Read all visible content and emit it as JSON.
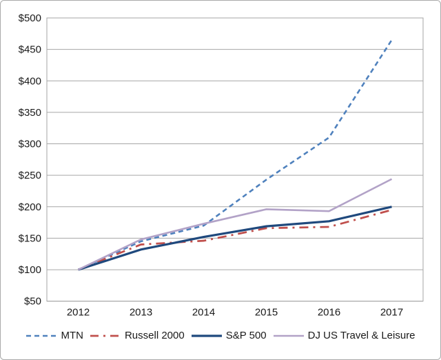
{
  "window": {
    "background": "#ffffff",
    "frame_border_color": "#a9a9a9"
  },
  "chart_data": {
    "type": "line",
    "title": "",
    "xlabel": "",
    "ylabel": "",
    "categories": [
      "2012",
      "2013",
      "2014",
      "2015",
      "2016",
      "2017"
    ],
    "series": [
      {
        "name": "MTN",
        "color": "#4f81bd",
        "dash": "7 5",
        "legend_dash": "7 5",
        "width": 2.6,
        "values": [
          100,
          145,
          170,
          243,
          310,
          465
        ]
      },
      {
        "name": "Russell 2000",
        "color": "#c0504d",
        "dash": "13 7 3 7",
        "legend_dash": "12 7 3 7",
        "width": 2.8,
        "values": [
          100,
          140,
          146,
          166,
          168,
          195
        ]
      },
      {
        "name": "S&P 500",
        "color": "#1f497d",
        "dash": "",
        "legend_dash": "",
        "width": 3.2,
        "values": [
          100,
          132,
          152,
          169,
          177,
          200
        ]
      },
      {
        "name": "DJ US Travel & Leisure",
        "color": "#b2a2c7",
        "dash": "",
        "legend_dash": "",
        "width": 2.6,
        "values": [
          100,
          148,
          173,
          196,
          193,
          244
        ]
      }
    ],
    "y_min": 50,
    "y_max": 500,
    "y_step": 50,
    "y_tick_labels": [
      "$500",
      "$450",
      "$400",
      "$350",
      "$300",
      "$250",
      "$200",
      "$150",
      "$100",
      "$50"
    ],
    "ylim": [
      50,
      500
    ],
    "grid": true,
    "gridline_color": "#a6a6a6",
    "plot_border_color": "#a6a6a6",
    "axis_text_color": "#1a1a1a",
    "legend_position": "bottom"
  }
}
